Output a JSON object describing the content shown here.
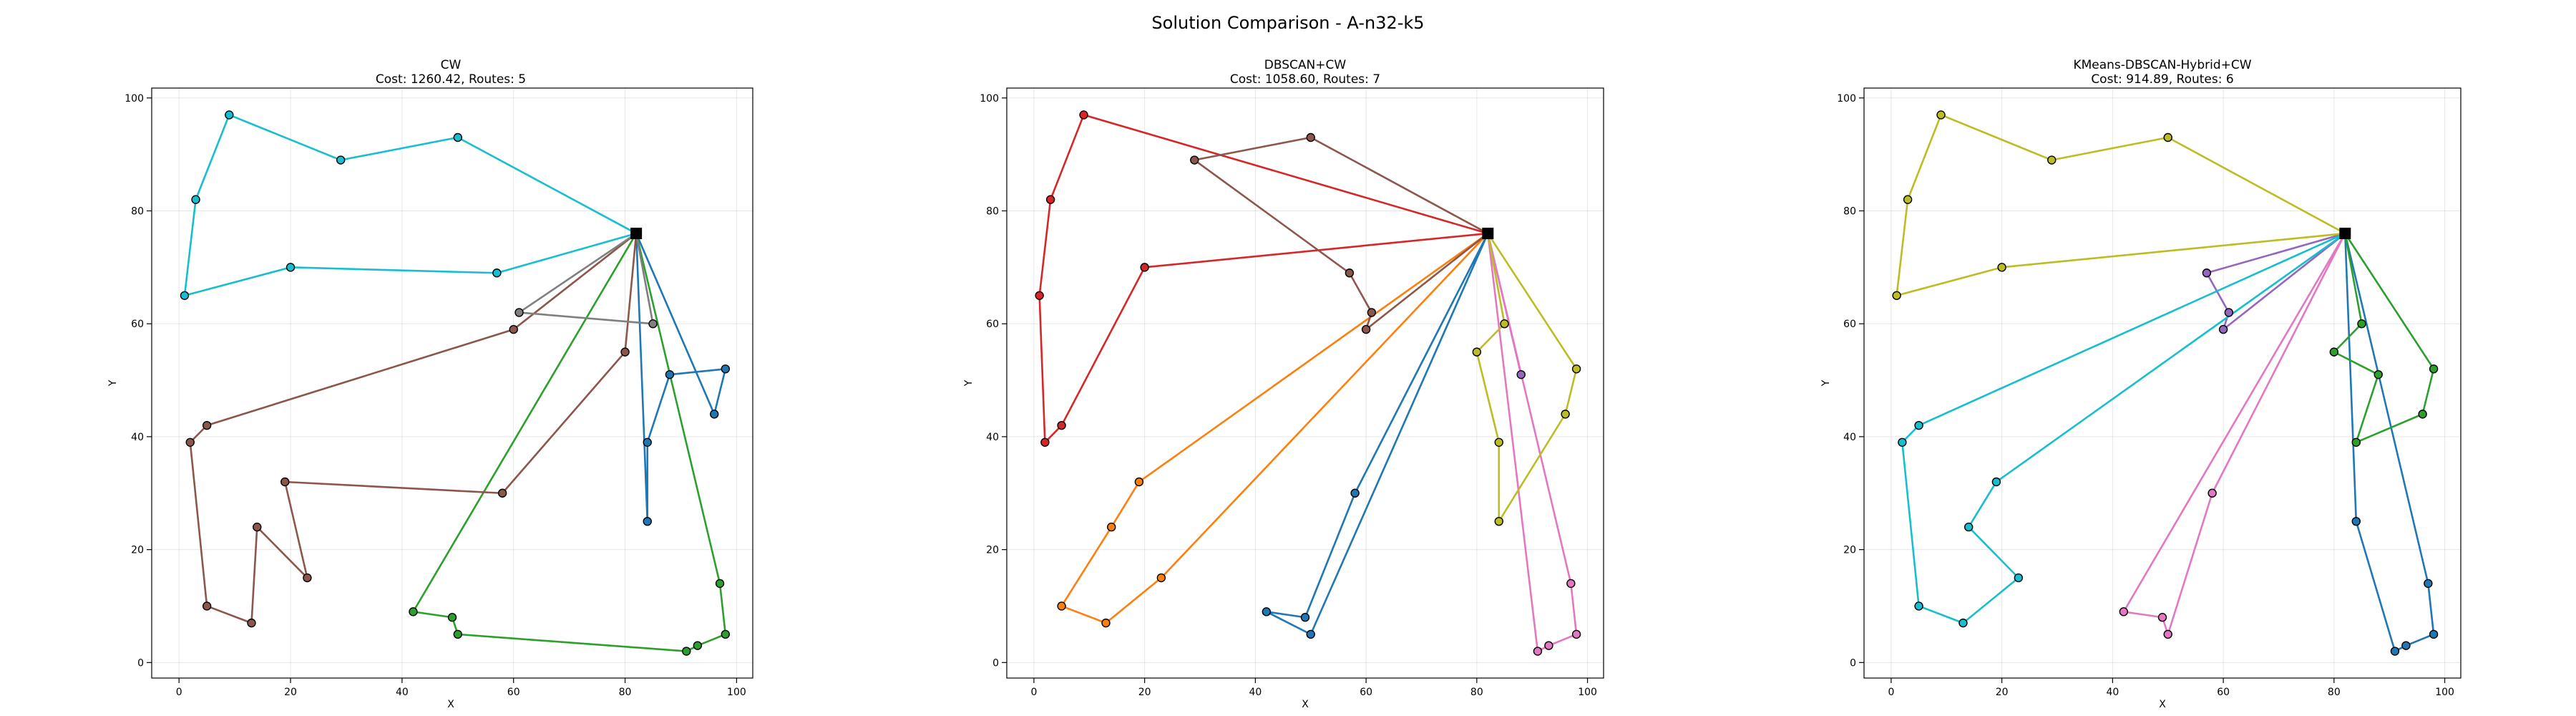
{
  "figure": {
    "title": "Solution Comparison - A-n32-k5"
  },
  "depot": {
    "x": 82,
    "y": 76
  },
  "customers": {
    "1": [
      98,
      5
    ],
    "2": [
      93,
      3
    ],
    "3": [
      91,
      2
    ],
    "4": [
      97,
      14
    ],
    "5": [
      84,
      25
    ],
    "6": [
      84,
      39
    ],
    "7": [
      96,
      44
    ],
    "8": [
      98,
      52
    ],
    "9": [
      88,
      51
    ],
    "10": [
      85,
      60
    ],
    "11": [
      80,
      55
    ],
    "12": [
      61,
      62
    ],
    "13": [
      60,
      59
    ],
    "14": [
      57,
      69
    ],
    "15": [
      29,
      89
    ],
    "16": [
      50,
      93
    ],
    "17": [
      9,
      97
    ],
    "18": [
      3,
      82
    ],
    "19": [
      1,
      65
    ],
    "20": [
      20,
      70
    ],
    "21": [
      58,
      30
    ],
    "22": [
      42,
      9
    ],
    "23": [
      49,
      8
    ],
    "24": [
      50,
      5
    ],
    "25": [
      2,
      39
    ],
    "26": [
      5,
      42
    ],
    "27": [
      13,
      7
    ],
    "28": [
      5,
      10
    ],
    "29": [
      23,
      15
    ],
    "30": [
      14,
      24
    ],
    "31": [
      19,
      32
    ]
  },
  "chart_data": [
    {
      "type": "scatter",
      "title": "CW",
      "subtitle": "Cost: 1260.42, Routes: 5",
      "xlabel": "X",
      "ylabel": "Y",
      "xlim": [
        -4.9,
        102.9
      ],
      "ylim": [
        -2.75,
        101.75
      ],
      "xticks": [
        0,
        20,
        40,
        60,
        80,
        100
      ],
      "yticks": [
        0,
        20,
        40,
        60,
        80,
        100
      ],
      "grid": true,
      "routes": [
        {
          "color": "#1f77b4",
          "stops": [
            5,
            6,
            9,
            8,
            7
          ]
        },
        {
          "color": "#2ca02c",
          "stops": [
            4,
            1,
            2,
            3,
            24,
            23,
            22
          ]
        },
        {
          "color": "#8c564b",
          "stops": [
            11,
            21,
            31,
            29,
            30,
            27,
            28,
            25,
            26,
            13
          ]
        },
        {
          "color": "#7f7f7f",
          "stops": [
            10,
            12
          ]
        },
        {
          "color": "#17becf",
          "stops": [
            14,
            20,
            19,
            18,
            17,
            15,
            16
          ]
        }
      ]
    },
    {
      "type": "scatter",
      "title": "DBSCAN+CW",
      "subtitle": "Cost: 1058.60, Routes: 7",
      "xlabel": "X",
      "ylabel": "Y",
      "xlim": [
        -4.9,
        102.9
      ],
      "ylim": [
        -2.75,
        101.75
      ],
      "xticks": [
        0,
        20,
        40,
        60,
        80,
        100
      ],
      "yticks": [
        0,
        20,
        40,
        60,
        80,
        100
      ],
      "grid": true,
      "routes": [
        {
          "color": "#1f77b4",
          "stops": [
            21,
            23,
            22,
            24
          ]
        },
        {
          "color": "#ff7f0e",
          "stops": [
            29,
            27,
            28,
            30,
            31
          ]
        },
        {
          "color": "#2ca02c",
          "stops": []
        },
        {
          "color": "#d62728",
          "stops": [
            20,
            26,
            25,
            19,
            18,
            17
          ]
        },
        {
          "color": "#9467bd",
          "stops": [
            9
          ]
        },
        {
          "color": "#8c564b",
          "stops": [
            16,
            15,
            14,
            12,
            13
          ]
        },
        {
          "color": "#e377c2",
          "stops": [
            3,
            2,
            1,
            4
          ]
        },
        {
          "color": "#bcbd22",
          "stops": [
            10,
            11,
            6,
            5,
            7,
            8
          ]
        }
      ]
    },
    {
      "type": "scatter",
      "title": "KMeans-DBSCAN-Hybrid+CW",
      "subtitle": "Cost: 914.89, Routes: 6",
      "xlabel": "X",
      "ylabel": "Y",
      "xlim": [
        -4.9,
        102.9
      ],
      "ylim": [
        -2.75,
        101.75
      ],
      "xticks": [
        0,
        20,
        40,
        60,
        80,
        100
      ],
      "yticks": [
        0,
        20,
        40,
        60,
        80,
        100
      ],
      "grid": true,
      "routes": [
        {
          "color": "#1f77b4",
          "stops": [
            5,
            3,
            2,
            1,
            4
          ]
        },
        {
          "color": "#2ca02c",
          "stops": [
            10,
            11,
            9,
            6,
            7,
            8
          ]
        },
        {
          "color": "#9467bd",
          "stops": [
            14,
            12,
            13
          ]
        },
        {
          "color": "#e377c2",
          "stops": [
            21,
            24,
            23,
            22
          ]
        },
        {
          "color": "#bcbd22",
          "stops": [
            20,
            19,
            18,
            17,
            15,
            16
          ]
        },
        {
          "color": "#17becf",
          "stops": [
            26,
            25,
            28,
            27,
            29,
            30,
            31
          ]
        }
      ]
    }
  ]
}
